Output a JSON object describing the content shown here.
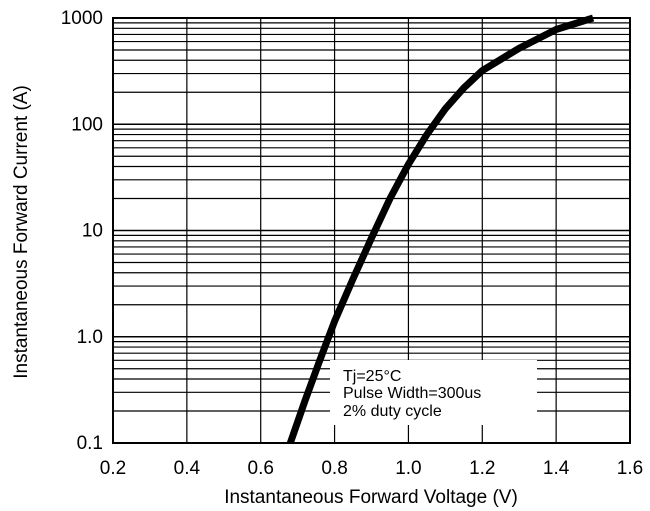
{
  "chart_data": {
    "type": "line",
    "title": "",
    "xlabel": "Instantaneous Forward Voltage (V)",
    "ylabel": "Instantaneous Forward Current (A)",
    "xlim": [
      0.2,
      1.6
    ],
    "ylim": [
      0.1,
      1000
    ],
    "y_scale": "log",
    "grid": true,
    "x_ticks": [
      "0.2",
      "0.4",
      "0.6",
      "0.8",
      "1.0",
      "1.2",
      "1.4",
      "1.6"
    ],
    "y_ticks": [
      "0.1",
      "1.0",
      "10",
      "100",
      "1000"
    ],
    "annotation": [
      "Tj=25°C",
      "Pulse Width=300us",
      "2% duty cycle"
    ],
    "series": [
      {
        "x": [
          0.68,
          0.72,
          0.76,
          0.8,
          0.85,
          0.9,
          0.95,
          1.0,
          1.05,
          1.1,
          1.15,
          1.2,
          1.3,
          1.4,
          1.5
        ],
        "y": [
          0.1,
          0.25,
          0.6,
          1.4,
          3.5,
          8.5,
          20,
          42,
          80,
          140,
          220,
          320,
          520,
          780,
          1000
        ]
      }
    ]
  }
}
